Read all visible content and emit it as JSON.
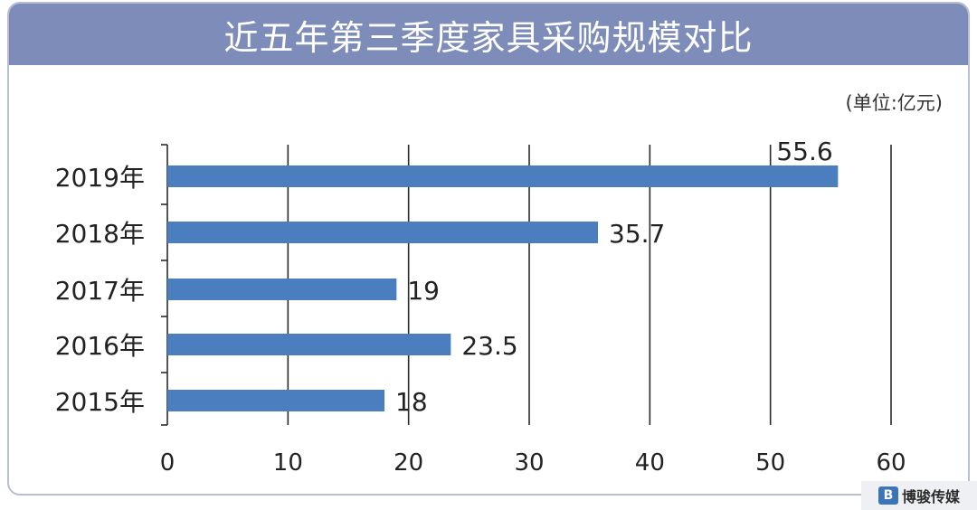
{
  "title": "近五年第三季度家具采购规模对比",
  "unit_label": "(单位:亿元)",
  "watermark": {
    "icon": "logo-icon",
    "text": "博骏传媒"
  },
  "colors": {
    "header": "#7e8cb9",
    "bar": "#4a7ebf",
    "grid": "#2b2b2b",
    "border": "#b9bfd3"
  },
  "chart_data": {
    "type": "bar",
    "orientation": "horizontal",
    "title": "近五年第三季度家具采购规模对比",
    "unit": "(单位:亿元)",
    "categories": [
      "2019年",
      "2018年",
      "2017年",
      "2016年",
      "2015年"
    ],
    "values": [
      55.6,
      35.7,
      19,
      23.5,
      18
    ],
    "value_labels": [
      "55.6",
      "35.7",
      "19",
      "23.5",
      "18"
    ],
    "xlim": [
      0,
      60
    ],
    "xticks": [
      "0",
      "10",
      "20",
      "30",
      "40",
      "50",
      "60"
    ],
    "grid": true,
    "legend": "none"
  }
}
